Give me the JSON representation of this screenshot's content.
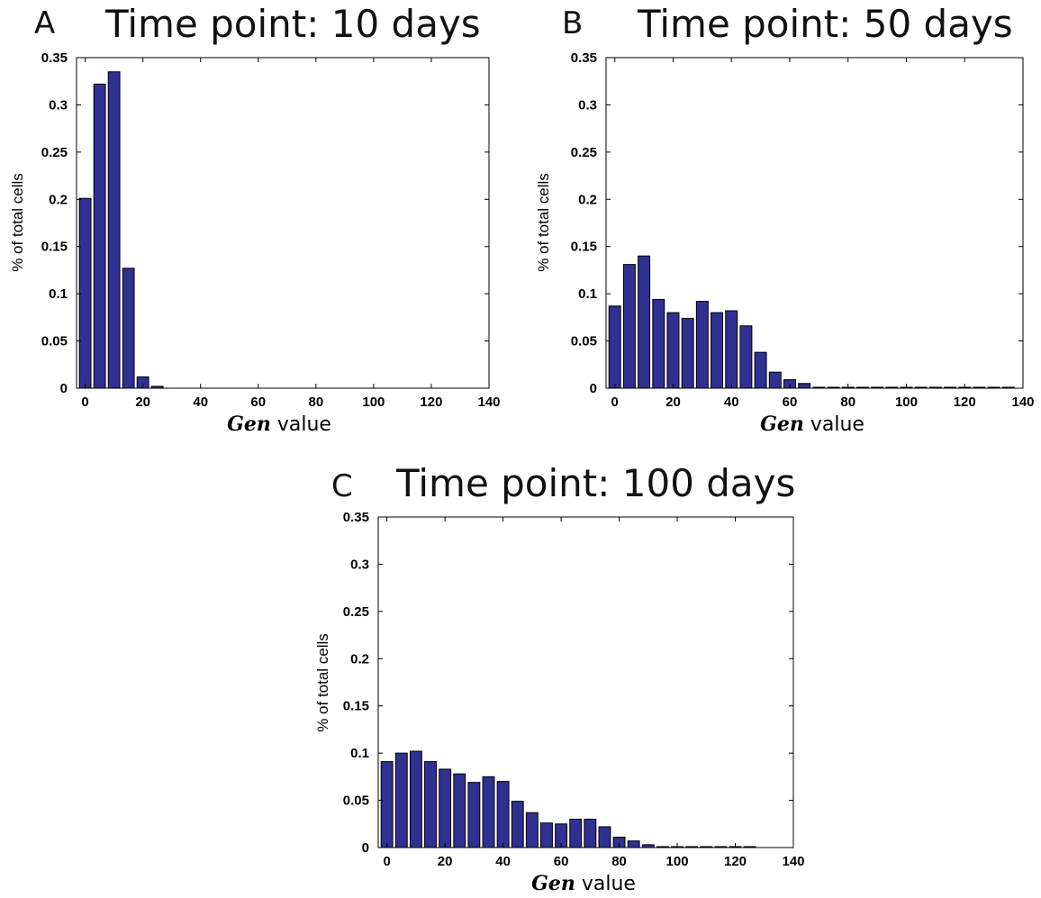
{
  "chart_data": [
    {
      "type": "bar",
      "panel_label": "A",
      "title": "Time point: 10 days",
      "ylabel": "% of total cells",
      "xlabel_italic": "Gen",
      "xlabel_rest": " value",
      "xlim": [
        -3,
        140
      ],
      "ylim": [
        0,
        0.35
      ],
      "xticks": [
        0,
        20,
        40,
        60,
        80,
        100,
        120,
        140
      ],
      "yticks": [
        0,
        0.05,
        0.1,
        0.15,
        0.2,
        0.25,
        0.3,
        0.35
      ],
      "bar_width": 4,
      "bar_color": "#2E3192",
      "x": [
        0,
        5,
        10,
        15,
        20,
        25
      ],
      "values": [
        0.201,
        0.322,
        0.335,
        0.127,
        0.012,
        0.002
      ]
    },
    {
      "type": "bar",
      "panel_label": "B",
      "title": "Time point: 50 days",
      "ylabel": "% of total cells",
      "xlabel_italic": "Gen",
      "xlabel_rest": " value",
      "xlim": [
        -3,
        140
      ],
      "ylim": [
        0,
        0.35
      ],
      "xticks": [
        0,
        20,
        40,
        60,
        80,
        100,
        120,
        140
      ],
      "yticks": [
        0,
        0.05,
        0.1,
        0.15,
        0.2,
        0.25,
        0.3,
        0.35
      ],
      "bar_width": 4,
      "bar_color": "#2E3192",
      "x": [
        0,
        5,
        10,
        15,
        20,
        25,
        30,
        35,
        40,
        45,
        50,
        55,
        60,
        65,
        70,
        75,
        80,
        85,
        90,
        95,
        100,
        105,
        110,
        115,
        120,
        125,
        130,
        135
      ],
      "values": [
        0.087,
        0.131,
        0.14,
        0.094,
        0.08,
        0.074,
        0.092,
        0.08,
        0.082,
        0.066,
        0.038,
        0.017,
        0.009,
        0.005,
        0.001,
        0.001,
        0.001,
        0.001,
        0.001,
        0.001,
        0.001,
        0.001,
        0.001,
        0.001,
        0.001,
        0.001,
        0.001,
        0.001
      ]
    },
    {
      "type": "bar",
      "panel_label": "C",
      "title": "Time point: 100 days",
      "ylabel": "% of total cells",
      "xlabel_italic": "Gen",
      "xlabel_rest": " value",
      "xlim": [
        -3,
        140
      ],
      "ylim": [
        0,
        0.35
      ],
      "xticks": [
        0,
        20,
        40,
        60,
        80,
        100,
        120,
        140
      ],
      "yticks": [
        0,
        0.05,
        0.1,
        0.15,
        0.2,
        0.25,
        0.3,
        0.35
      ],
      "bar_width": 4,
      "bar_color": "#2E3192",
      "x": [
        0,
        5,
        10,
        15,
        20,
        25,
        30,
        35,
        40,
        45,
        50,
        55,
        60,
        65,
        70,
        75,
        80,
        85,
        90,
        95,
        100,
        105,
        110,
        115,
        120,
        125
      ],
      "values": [
        0.091,
        0.1,
        0.102,
        0.091,
        0.083,
        0.078,
        0.069,
        0.075,
        0.07,
        0.049,
        0.037,
        0.026,
        0.025,
        0.03,
        0.03,
        0.022,
        0.011,
        0.007,
        0.003,
        0.001,
        0.001,
        0.001,
        0.001,
        0.001,
        0.001,
        0.001
      ]
    }
  ]
}
